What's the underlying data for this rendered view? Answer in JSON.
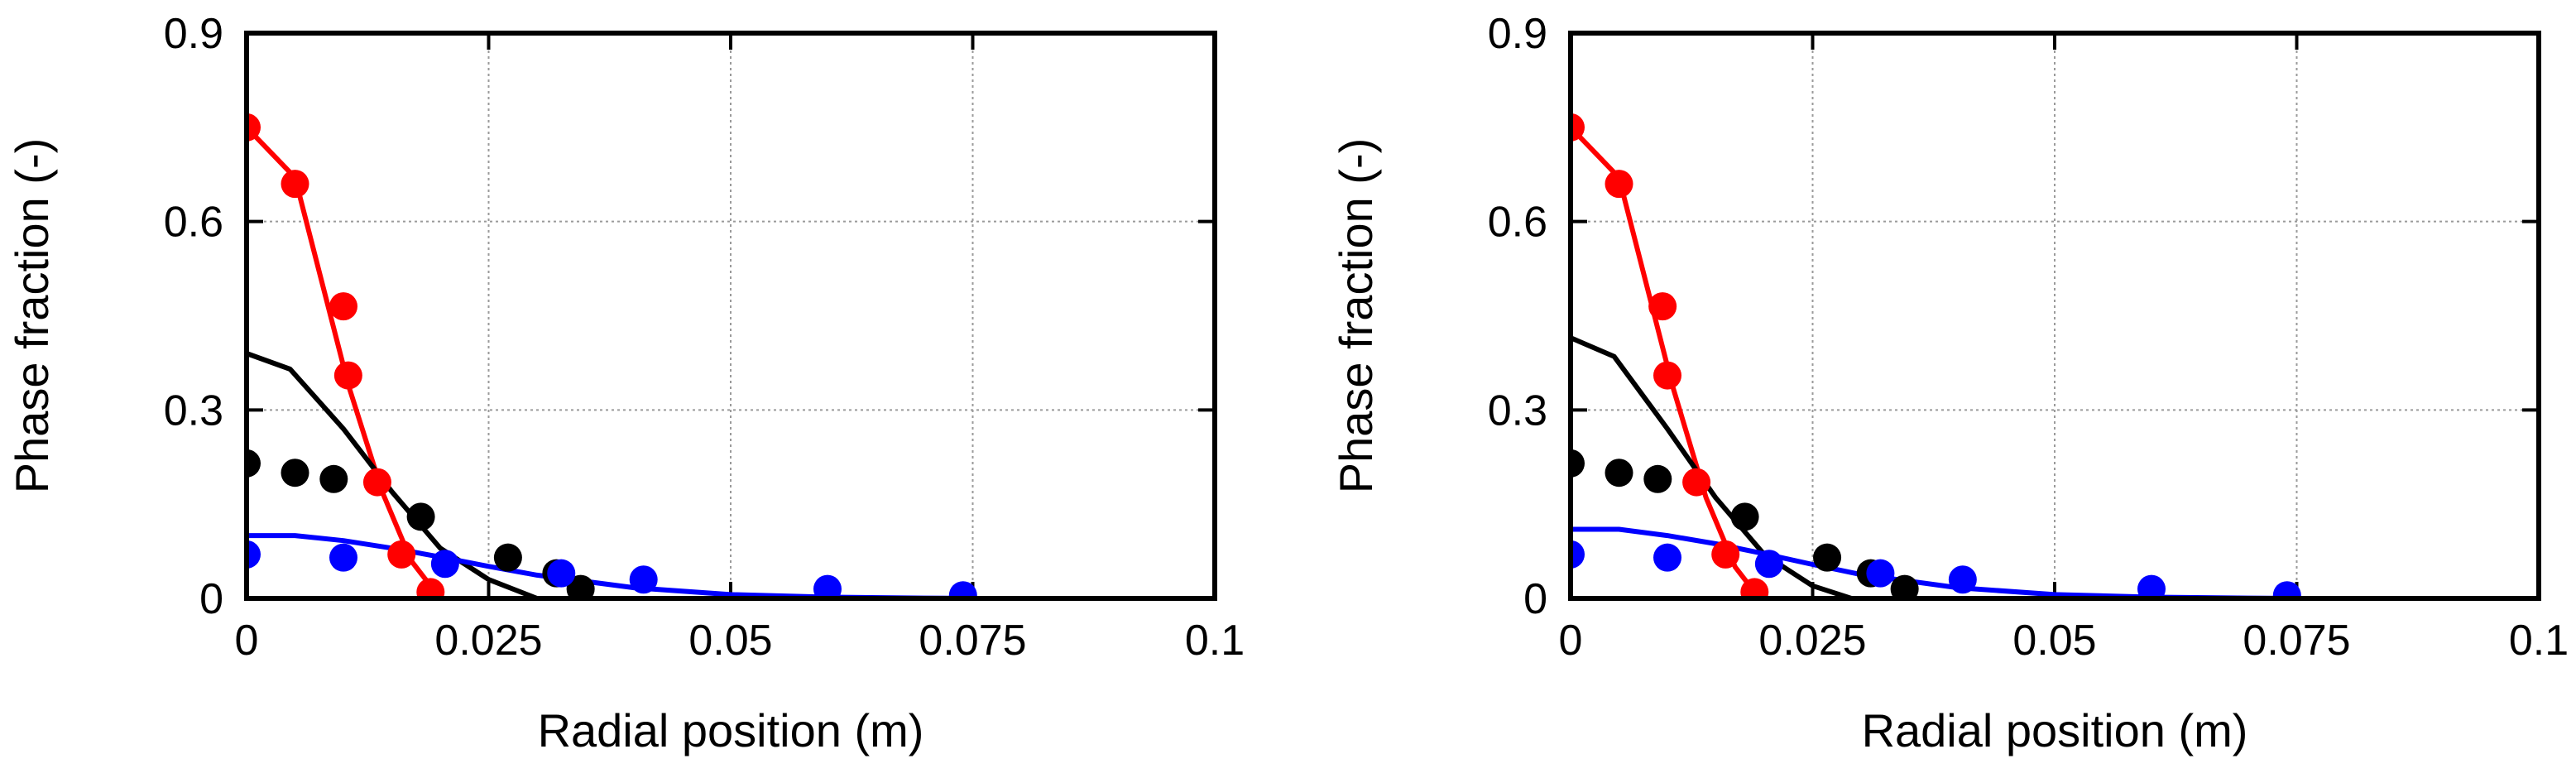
{
  "chart_data": [
    {
      "type": "line",
      "panel": "left",
      "xlabel": "Radial position (m)",
      "ylabel": "Phase fraction (-)",
      "xlim": [
        0,
        0.1
      ],
      "ylim": [
        0,
        0.9
      ],
      "xticks": [
        0,
        0.025,
        0.05,
        0.075,
        0.1
      ],
      "xtick_labels": [
        "0",
        "0.025",
        "0.05",
        "0.075",
        "0.1"
      ],
      "yticks": [
        0,
        0.3,
        0.6,
        0.9
      ],
      "ytick_labels": [
        "0",
        "0.3",
        "0.6",
        "0.9"
      ],
      "grid": true,
      "series": [
        {
          "name": "red-line",
          "kind": "line",
          "color": "#ff0000",
          "x": [
            0,
            0.005,
            0.0105,
            0.014,
            0.017,
            0.02
          ],
          "y": [
            0.75,
            0.67,
            0.34,
            0.17,
            0.06,
            0.0
          ]
        },
        {
          "name": "red-points",
          "kind": "points",
          "color": "#ff0000",
          "x": [
            0,
            0.005,
            0.01,
            0.0105,
            0.0135,
            0.016,
            0.019
          ],
          "y": [
            0.75,
            0.66,
            0.465,
            0.355,
            0.185,
            0.07,
            0.01
          ]
        },
        {
          "name": "black-line",
          "kind": "line",
          "color": "#000000",
          "x": [
            0,
            0.0045,
            0.01,
            0.015,
            0.02,
            0.025,
            0.03
          ],
          "y": [
            0.39,
            0.365,
            0.27,
            0.17,
            0.08,
            0.03,
            0.0
          ]
        },
        {
          "name": "black-points",
          "kind": "points",
          "color": "#000000",
          "x": [
            0,
            0.005,
            0.009,
            0.018,
            0.027,
            0.032,
            0.0345
          ],
          "y": [
            0.215,
            0.2,
            0.19,
            0.13,
            0.065,
            0.04,
            0.015
          ]
        },
        {
          "name": "blue-line",
          "kind": "line",
          "color": "#0000ff",
          "x": [
            0,
            0.005,
            0.01,
            0.015,
            0.02,
            0.025,
            0.03,
            0.04,
            0.05,
            0.06,
            0.07,
            0.075
          ],
          "y": [
            0.1,
            0.1,
            0.092,
            0.08,
            0.066,
            0.051,
            0.037,
            0.017,
            0.006,
            0.002,
            0.0005,
            0.0
          ]
        },
        {
          "name": "blue-points",
          "kind": "points",
          "color": "#0000ff",
          "x": [
            0,
            0.01,
            0.0205,
            0.0325,
            0.041,
            0.06,
            0.074
          ],
          "y": [
            0.07,
            0.065,
            0.055,
            0.04,
            0.03,
            0.015,
            0.005
          ]
        }
      ]
    },
    {
      "type": "line",
      "panel": "right",
      "xlabel": "Radial position (m)",
      "ylabel": "Phase fraction (-)",
      "xlim": [
        0,
        0.1
      ],
      "ylim": [
        0,
        0.9
      ],
      "xticks": [
        0,
        0.025,
        0.05,
        0.075,
        0.1
      ],
      "xtick_labels": [
        "0",
        "0.025",
        "0.05",
        "0.075",
        "0.1"
      ],
      "yticks": [
        0,
        0.3,
        0.6,
        0.9
      ],
      "ytick_labels": [
        "0",
        "0.3",
        "0.6",
        "0.9"
      ],
      "grid": true,
      "series": [
        {
          "name": "red-line",
          "kind": "line",
          "color": "#ff0000",
          "x": [
            0,
            0.005,
            0.0105,
            0.014,
            0.017,
            0.0195
          ],
          "y": [
            0.75,
            0.67,
            0.34,
            0.16,
            0.05,
            0.0
          ]
        },
        {
          "name": "red-points",
          "kind": "points",
          "color": "#ff0000",
          "x": [
            0,
            0.005,
            0.0095,
            0.01,
            0.013,
            0.016,
            0.019
          ],
          "y": [
            0.75,
            0.66,
            0.465,
            0.355,
            0.185,
            0.07,
            0.01
          ]
        },
        {
          "name": "black-line",
          "kind": "line",
          "color": "#000000",
          "x": [
            0,
            0.0045,
            0.01,
            0.015,
            0.02,
            0.025,
            0.029
          ],
          "y": [
            0.415,
            0.385,
            0.27,
            0.16,
            0.07,
            0.02,
            0.0
          ]
        },
        {
          "name": "black-points",
          "kind": "points",
          "color": "#000000",
          "x": [
            0,
            0.005,
            0.009,
            0.018,
            0.0265,
            0.031,
            0.0345
          ],
          "y": [
            0.215,
            0.2,
            0.19,
            0.13,
            0.065,
            0.04,
            0.015
          ]
        },
        {
          "name": "blue-line",
          "kind": "line",
          "color": "#0000ff",
          "x": [
            0,
            0.005,
            0.01,
            0.015,
            0.02,
            0.025,
            0.03,
            0.04,
            0.05,
            0.06,
            0.07,
            0.075
          ],
          "y": [
            0.11,
            0.11,
            0.1,
            0.087,
            0.071,
            0.054,
            0.038,
            0.017,
            0.006,
            0.002,
            0.0005,
            0.0
          ]
        },
        {
          "name": "blue-points",
          "kind": "points",
          "color": "#0000ff",
          "x": [
            0,
            0.01,
            0.0205,
            0.032,
            0.0405,
            0.06,
            0.074
          ],
          "y": [
            0.07,
            0.065,
            0.055,
            0.04,
            0.03,
            0.015,
            0.005
          ]
        }
      ]
    }
  ]
}
